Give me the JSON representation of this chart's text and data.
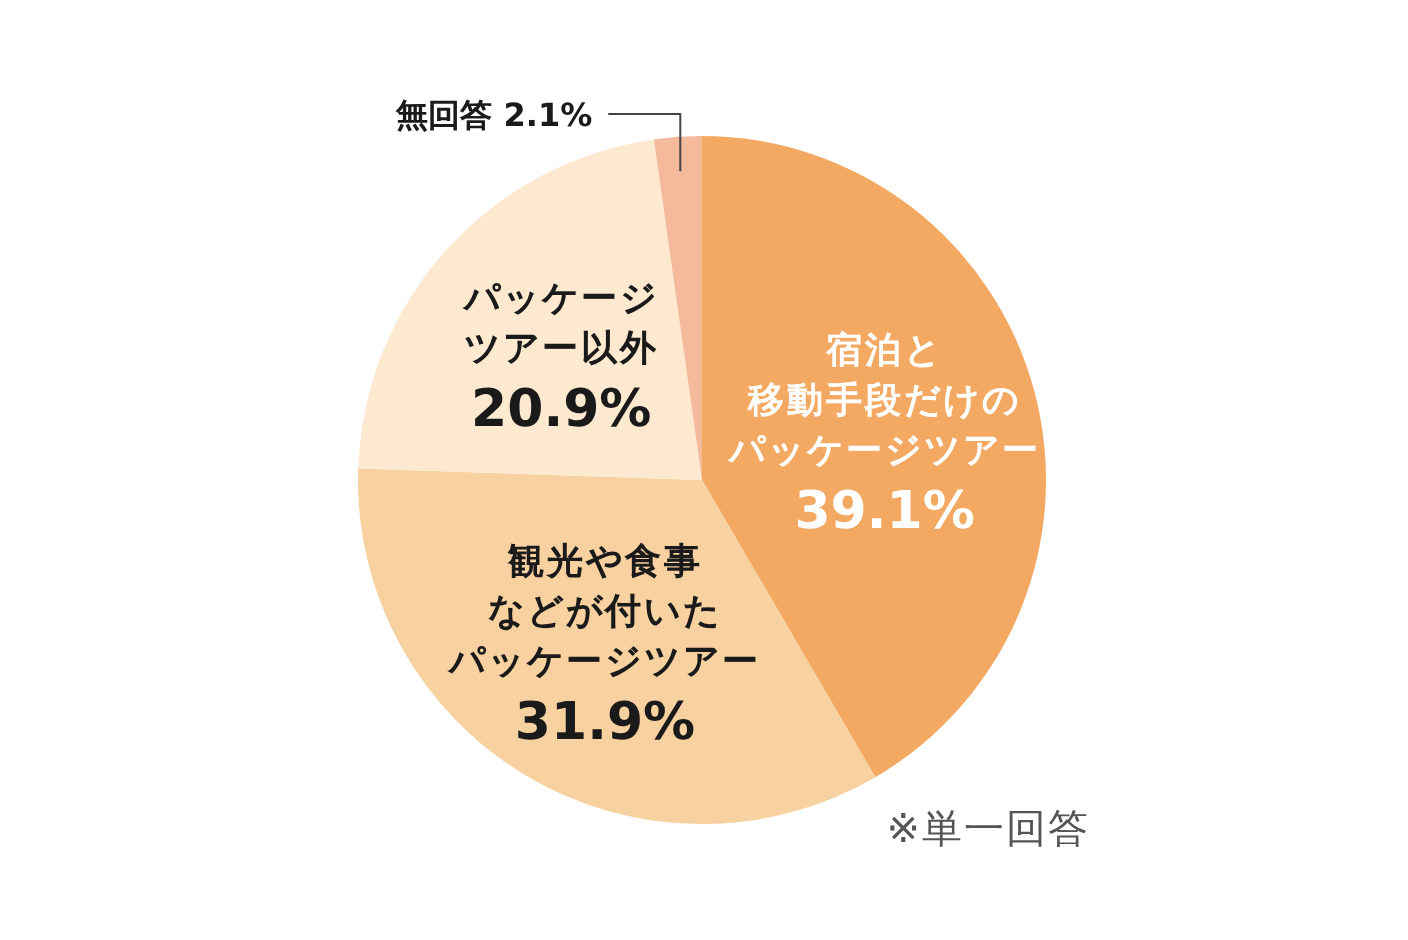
{
  "chart_data": {
    "type": "pie",
    "categories": [
      "宿泊と移動手段だけのパッケージツアー",
      "観光や食事などが付いたパッケージツアー",
      "パッケージツアー以外",
      "無回答"
    ],
    "values": [
      39.1,
      31.9,
      20.9,
      2.1
    ],
    "colors": [
      "#f3a962",
      "#f7d1a0",
      "#fce9d0",
      "#f5b99b"
    ],
    "value_labels": [
      "39.1%",
      "31.9%",
      "20.9%",
      "2.1%"
    ],
    "annotations": [
      "※単一回答"
    ]
  }
}
